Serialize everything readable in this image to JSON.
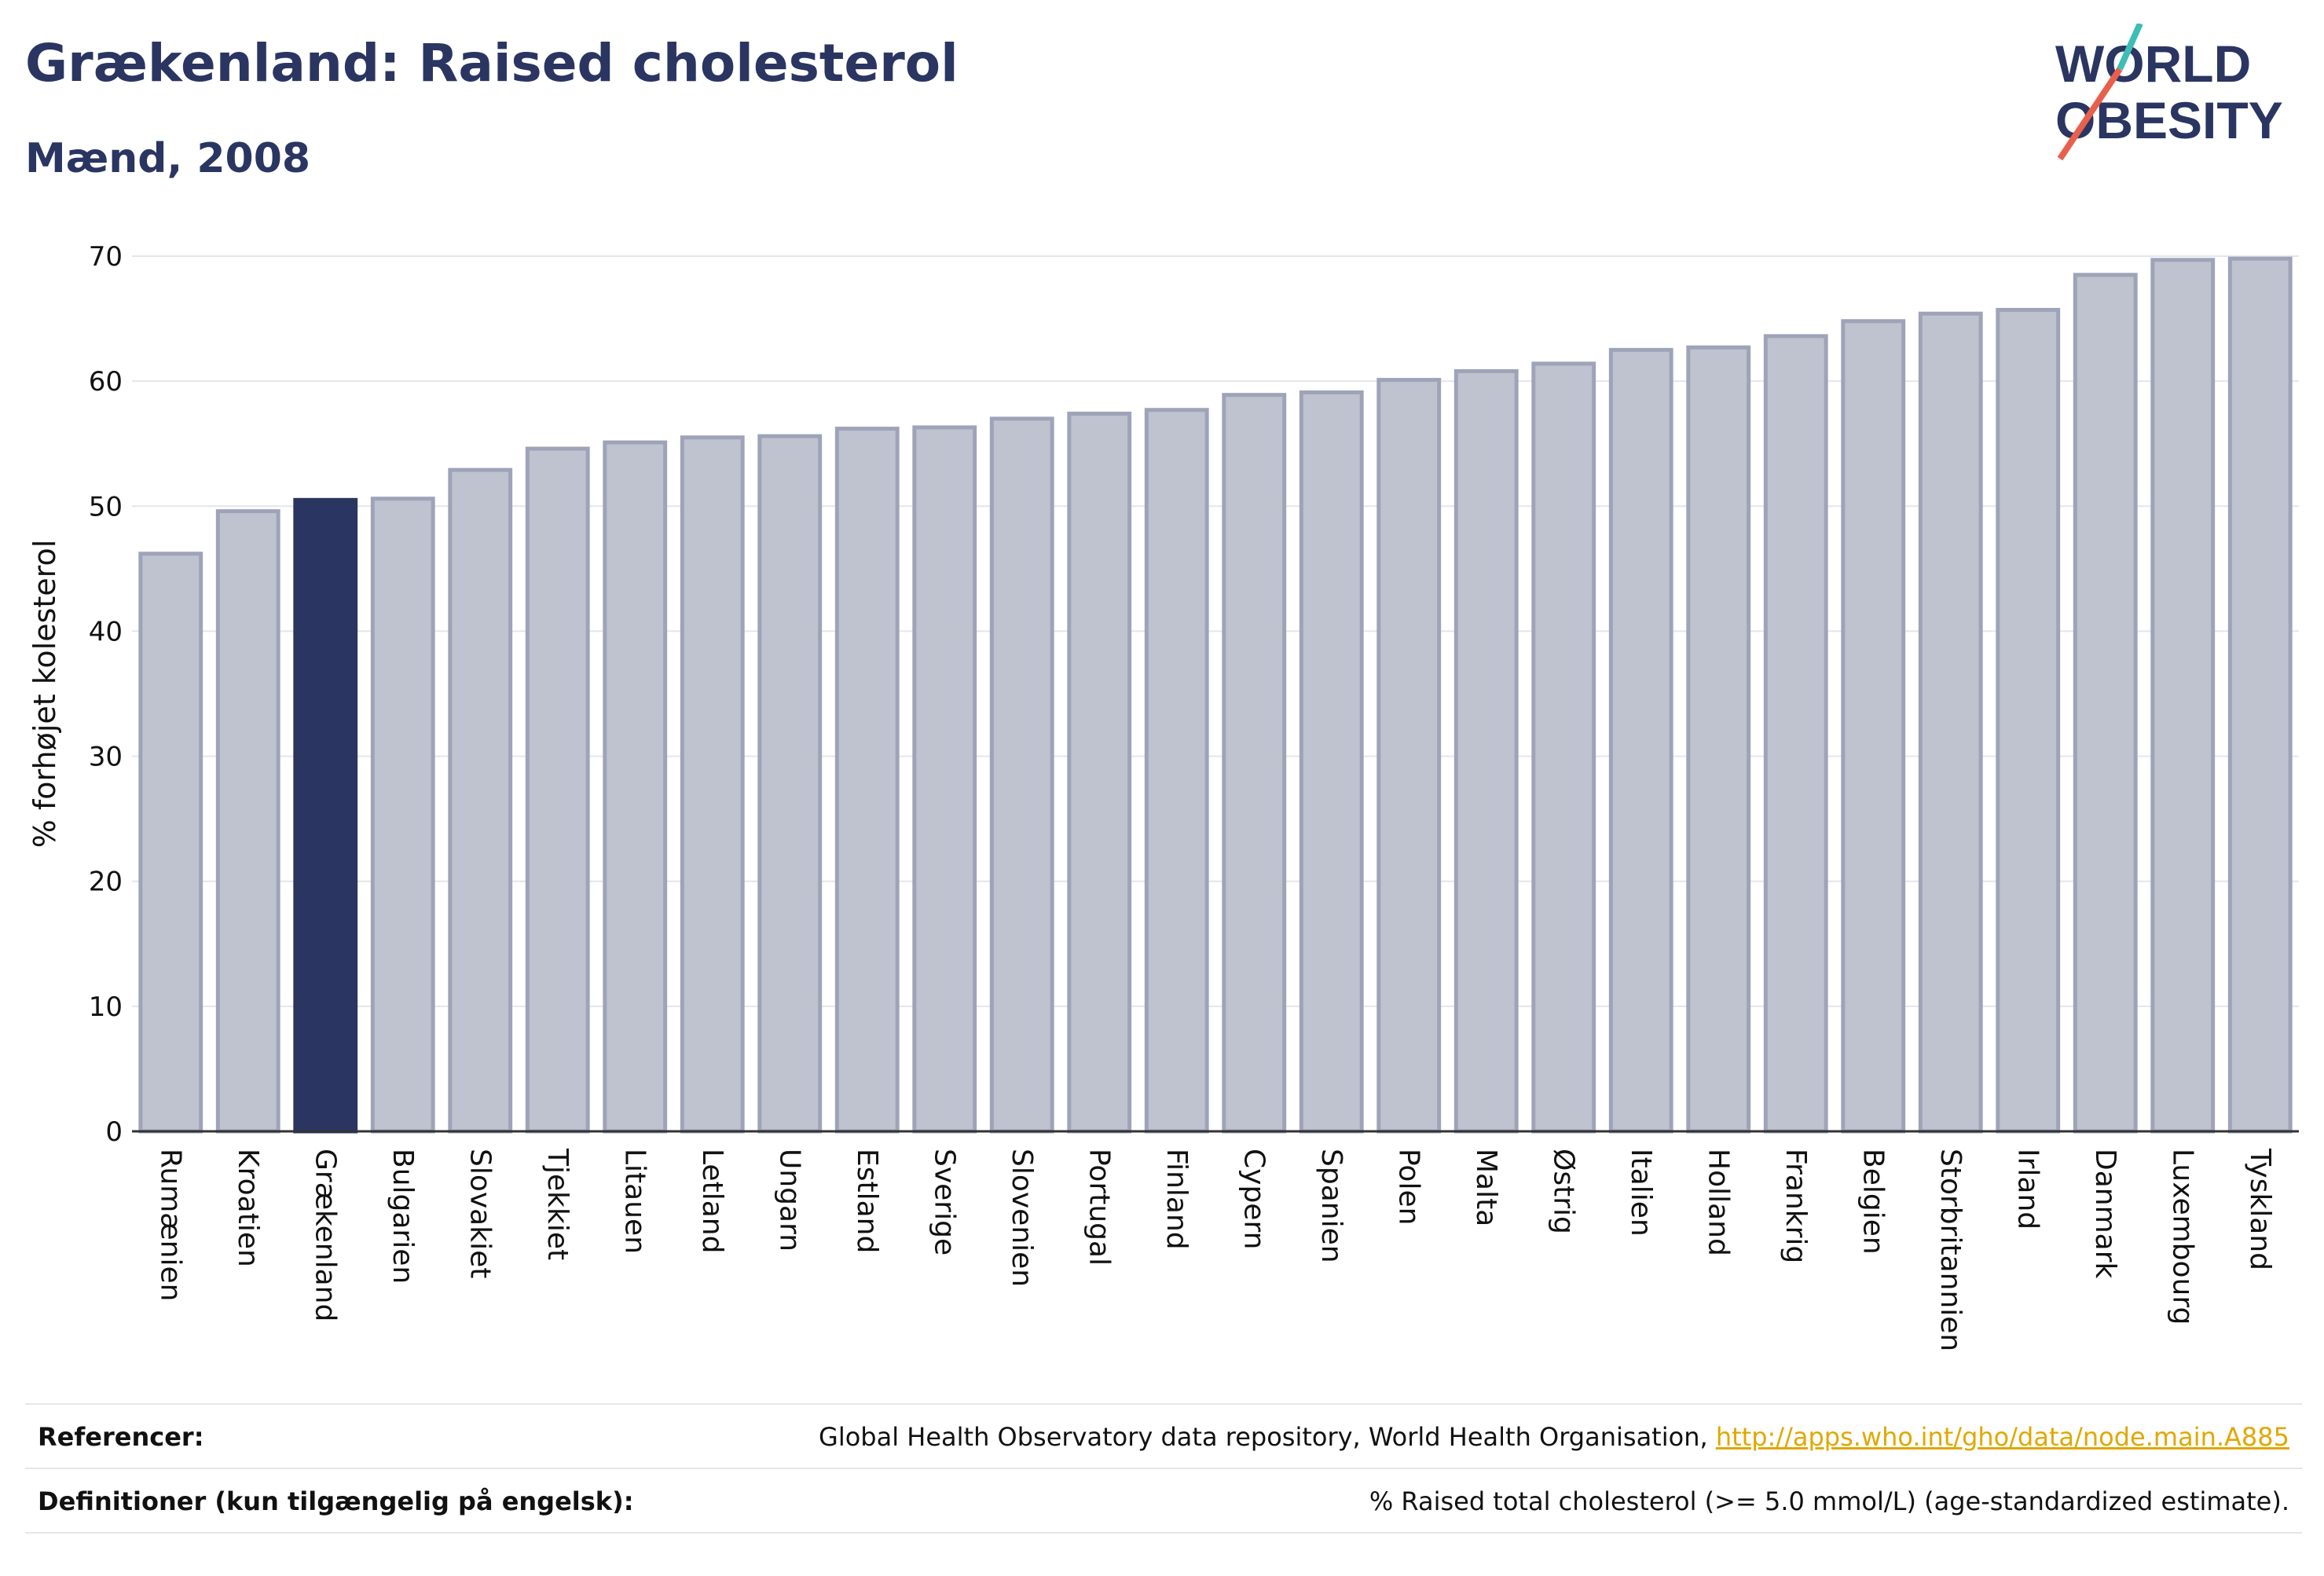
{
  "header": {
    "title": "Grækenland: Raised cholesterol",
    "subtitle": "Mænd, 2008"
  },
  "logo": {
    "line1": "WORLD",
    "line2": "OBESITY"
  },
  "chart_data": {
    "type": "bar",
    "ylabel": "% forhøjet kolesterol",
    "ylim": [
      0,
      70
    ],
    "yticks": [
      0,
      10,
      20,
      30,
      40,
      50,
      60,
      70
    ],
    "grid": true,
    "highlight": "Grækenland",
    "categories": [
      "Rumænien",
      "Kroatien",
      "Grækenland",
      "Bulgarien",
      "Slovakiet",
      "Tjekkiet",
      "Litauen",
      "Letland",
      "Ungarn",
      "Estland",
      "Sverige",
      "Slovenien",
      "Portugal",
      "Finland",
      "Cypern",
      "Spanien",
      "Polen",
      "Malta",
      "Østrig",
      "Italien",
      "Holland",
      "Frankrig",
      "Belgien",
      "Storbritannien",
      "Irland",
      "Danmark",
      "Luxembourg",
      "Tyskland"
    ],
    "values": [
      46.2,
      49.6,
      50.5,
      50.6,
      52.9,
      54.6,
      55.1,
      55.5,
      55.6,
      56.2,
      56.3,
      57.0,
      57.4,
      57.7,
      58.9,
      59.1,
      60.1,
      60.8,
      61.4,
      62.5,
      62.7,
      63.6,
      64.8,
      65.4,
      65.7,
      68.5,
      69.7,
      69.8
    ],
    "colors": {
      "bar": "#bfc2cf",
      "bar_edge": "#9ea3b8",
      "highlight": "#2a3561",
      "grid": "#e4e6ec",
      "axis": "#333333"
    }
  },
  "footer": {
    "references_label": "Referencer:",
    "references_text": "Global Health Observatory data repository, World Health Organisation,",
    "references_link": "http://apps.who.int/gho/data/node.main.A885",
    "definitions_label": "Definitioner (kun tilgængelig på engelsk):",
    "definitions_text": "% Raised total cholesterol (>= 5.0 mmol/L) (age-standardized estimate)."
  }
}
